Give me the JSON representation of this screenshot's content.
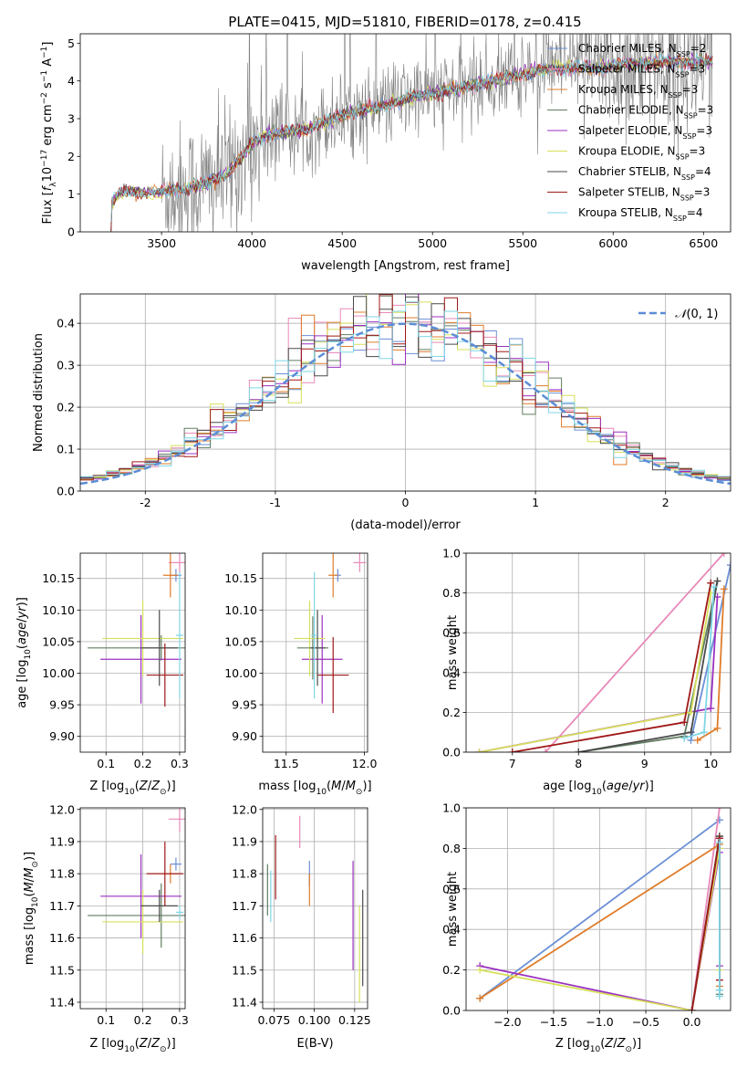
{
  "figure_title": "PLATE=0415, MJD=51810, FIBERID=0178, z=0.415",
  "colors": {
    "Chabrier MILES": "#6a8fd6",
    "Salpeter MILES": "#e889b8",
    "Kroupa MILES": "#e07c2a",
    "Chabrier ELODIE": "#607d60",
    "Salpeter ELODIE": "#9b30c0",
    "Kroupa ELODIE": "#d6e05a",
    "Chabrier STELIB": "#4a4a4a",
    "Salpeter STELIB": "#a01818",
    "Kroupa STELIB": "#7fd6e6",
    "data": "#808080",
    "gaussian": "#5b8dd6"
  },
  "chart_data": [
    {
      "id": "spectrum",
      "type": "line",
      "title": "PLATE=0415, MJD=51810, FIBERID=0178, z=0.415",
      "xlabel": "wavelength [Angstrom, rest frame]",
      "ylabel": "Flux [f_λ 10^-17 erg cm^-2 s^-1 A^-1]",
      "xlim": [
        3050,
        6650
      ],
      "ylim": [
        0,
        5.25
      ],
      "xticks": [
        3500,
        4000,
        4500,
        5000,
        5500,
        6000,
        6500
      ],
      "yticks": [
        0,
        1,
        2,
        3,
        4,
        5
      ],
      "grid": false,
      "legend_position": "top-right",
      "legend": [
        {
          "label": "Chabrier MILES, N",
          "sub": "SSP",
          "eq": "=2"
        },
        {
          "label": "Salpeter MILES, N",
          "sub": "SSP",
          "eq": "=3"
        },
        {
          "label": "Kroupa MILES, N",
          "sub": "SSP",
          "eq": "=3"
        },
        {
          "label": "Chabrier ELODIE, N",
          "sub": "SSP",
          "eq": "=3"
        },
        {
          "label": "Salpeter ELODIE, N",
          "sub": "SSP",
          "eq": "=3"
        },
        {
          "label": "Kroupa ELODIE, N",
          "sub": "SSP",
          "eq": "=3"
        },
        {
          "label": "Chabrier STELIB, N",
          "sub": "SSP",
          "eq": "=4"
        },
        {
          "label": "Salpeter STELIB, N",
          "sub": "SSP",
          "eq": "=3"
        },
        {
          "label": "Kroupa STELIB, N",
          "sub": "SSP",
          "eq": "=4"
        }
      ],
      "model_continuum": [
        [
          3220,
          0.0
        ],
        [
          3225,
          0.8
        ],
        [
          3270,
          1.05
        ],
        [
          3500,
          1.05
        ],
        [
          3700,
          1.2
        ],
        [
          3850,
          1.5
        ],
        [
          3950,
          2.0
        ],
        [
          4000,
          2.35
        ],
        [
          4100,
          2.6
        ],
        [
          4300,
          2.7
        ],
        [
          4500,
          3.1
        ],
        [
          4700,
          3.3
        ],
        [
          4900,
          3.6
        ],
        [
          5100,
          3.75
        ],
        [
          5300,
          3.95
        ],
        [
          5500,
          4.2
        ],
        [
          5700,
          4.35
        ],
        [
          5900,
          4.35
        ],
        [
          6100,
          4.45
        ],
        [
          6300,
          4.5
        ],
        [
          6550,
          4.5
        ]
      ],
      "data_range": [
        3500,
        6550
      ]
    },
    {
      "id": "residuals",
      "type": "histogram",
      "xlabel": "(data-model)/error",
      "ylabel": "Normed distribution",
      "xlim": [
        -2.5,
        2.5
      ],
      "ylim": [
        0,
        0.47
      ],
      "xticks": [
        -2,
        -1,
        0,
        1,
        2
      ],
      "yticks": [
        0.0,
        0.1,
        0.2,
        0.3,
        0.4
      ],
      "grid": true,
      "legend_position": "top-right",
      "legend_label": "N(0,1)",
      "bin_width": 0.1
    },
    {
      "id": "z-age",
      "type": "errorbar",
      "xlabel": "Z [log10(Z/Z⊙)]",
      "ylabel": "age  [log10(age/yr)]",
      "xlim": [
        0.03,
        0.315
      ],
      "ylim": [
        9.875,
        10.19
      ],
      "xticks": [
        0.1,
        0.2,
        0.3
      ],
      "yticks": [
        9.9,
        9.95,
        10.0,
        10.05,
        10.1,
        10.15
      ],
      "grid": true,
      "points": [
        {
          "model": "Chabrier MILES",
          "x": 0.29,
          "xerr": 0.015,
          "y": 10.155,
          "yerr": 0.01
        },
        {
          "model": "Salpeter MILES",
          "x": 0.3,
          "xerr": 0.03,
          "y": 10.175,
          "yerr": 0.015
        },
        {
          "model": "Kroupa MILES",
          "x": 0.275,
          "xerr": 0.02,
          "y": 10.155,
          "yerr": 0.035
        },
        {
          "model": "Chabrier ELODIE",
          "x": 0.25,
          "xerr": 0.2,
          "y": 10.04,
          "yerr": 0.02
        },
        {
          "model": "Salpeter ELODIE",
          "x": 0.195,
          "xerr": 0.11,
          "y": 10.022,
          "yerr": 0.07
        },
        {
          "model": "Kroupa ELODIE",
          "x": 0.2,
          "xerr": 0.11,
          "y": 10.055,
          "yerr": 0.06
        },
        {
          "model": "Chabrier STELIB",
          "x": 0.245,
          "xerr": 0.05,
          "y": 10.04,
          "yerr": 0.06
        },
        {
          "model": "Salpeter STELIB",
          "x": 0.26,
          "xerr": 0.05,
          "y": 9.997,
          "yerr": 0.05
        },
        {
          "model": "Kroupa STELIB",
          "x": 0.3,
          "xerr": 0.01,
          "y": 10.06,
          "yerr": 0.1
        }
      ]
    },
    {
      "id": "mass-age",
      "type": "errorbar",
      "xlabel": "mass [log10(M/M⊙)]",
      "ylabel": "",
      "xlim": [
        11.35,
        12.02
      ],
      "ylim": [
        9.875,
        10.19
      ],
      "xticks": [
        11.5,
        12.0
      ],
      "yticks": [
        9.9,
        9.95,
        10.0,
        10.05,
        10.1,
        10.15
      ],
      "grid": true,
      "points": [
        {
          "model": "Chabrier MILES",
          "x": 11.83,
          "xerr": 0.02,
          "y": 10.155,
          "yerr": 0.01
        },
        {
          "model": "Salpeter MILES",
          "x": 11.97,
          "xerr": 0.04,
          "y": 10.175,
          "yerr": 0.015
        },
        {
          "model": "Kroupa MILES",
          "x": 11.8,
          "xerr": 0.03,
          "y": 10.155,
          "yerr": 0.035
        },
        {
          "model": "Chabrier ELODIE",
          "x": 11.67,
          "xerr": 0.1,
          "y": 10.04,
          "yerr": 0.05
        },
        {
          "model": "Salpeter ELODIE",
          "x": 11.73,
          "xerr": 0.13,
          "y": 10.022,
          "yerr": 0.07
        },
        {
          "model": "Kroupa ELODIE",
          "x": 11.65,
          "xerr": 0.1,
          "y": 10.055,
          "yerr": 0.06
        },
        {
          "model": "Chabrier STELIB",
          "x": 11.7,
          "xerr": 0.05,
          "y": 10.04,
          "yerr": 0.06
        },
        {
          "model": "Salpeter STELIB",
          "x": 11.8,
          "xerr": 0.1,
          "y": 9.997,
          "yerr": 0.06
        },
        {
          "model": "Kroupa STELIB",
          "x": 11.68,
          "xerr": 0.02,
          "y": 10.06,
          "yerr": 0.1
        }
      ]
    },
    {
      "id": "age-weight",
      "type": "line",
      "xlabel": "age  [log10(age/yr)]",
      "ylabel": "mass weight",
      "xlim": [
        6.3,
        10.3
      ],
      "ylim": [
        0,
        1.0
      ],
      "xticks": [
        7,
        8,
        9,
        10
      ],
      "yticks": [
        0.0,
        0.2,
        0.4,
        0.6,
        0.8,
        1.0
      ],
      "grid": true,
      "series": [
        {
          "model": "Chabrier MILES",
          "x": [
            9.7,
            10.3
          ],
          "y": [
            0.06,
            0.94
          ]
        },
        {
          "model": "Salpeter MILES",
          "x": [
            7.5,
            10.2
          ],
          "y": [
            0.0,
            1.0
          ]
        },
        {
          "model": "Kroupa MILES",
          "x": [
            9.8,
            10.1,
            10.2
          ],
          "y": [
            0.06,
            0.12,
            0.82
          ]
        },
        {
          "model": "Chabrier ELODIE",
          "x": [
            8.0,
            9.6,
            10.1
          ],
          "y": [
            0.0,
            0.08,
            0.86
          ]
        },
        {
          "model": "Salpeter ELODIE",
          "x": [
            6.5,
            10.0,
            10.1
          ],
          "y": [
            0.0,
            0.22,
            0.78
          ]
        },
        {
          "model": "Kroupa ELODIE",
          "x": [
            6.5,
            9.7,
            10.0
          ],
          "y": [
            0.0,
            0.2,
            0.8
          ]
        },
        {
          "model": "Chabrier STELIB",
          "x": [
            8.0,
            9.7,
            10.1
          ],
          "y": [
            0.0,
            0.1,
            0.86
          ]
        },
        {
          "model": "Salpeter STELIB",
          "x": [
            7.0,
            9.6,
            10.0
          ],
          "y": [
            0.0,
            0.15,
            0.85
          ]
        },
        {
          "model": "Kroupa STELIB",
          "x": [
            9.6,
            9.9,
            10.05
          ],
          "y": [
            0.07,
            0.1,
            0.83
          ]
        }
      ]
    },
    {
      "id": "z-mass",
      "type": "errorbar",
      "xlabel": "Z [log10(Z/Z⊙)]",
      "ylabel": "mass [log10(M/M⊙)]",
      "xlim": [
        0.03,
        0.315
      ],
      "ylim": [
        11.38,
        12.005
      ],
      "xticks": [
        0.1,
        0.2,
        0.3
      ],
      "yticks": [
        11.4,
        11.5,
        11.6,
        11.7,
        11.8,
        11.9,
        12.0
      ],
      "grid": true,
      "points": [
        {
          "model": "Chabrier MILES",
          "x": 0.29,
          "xerr": 0.015,
          "y": 11.83,
          "yerr": 0.02
        },
        {
          "model": "Salpeter MILES",
          "x": 0.3,
          "xerr": 0.03,
          "y": 11.97,
          "yerr": 0.04
        },
        {
          "model": "Kroupa MILES",
          "x": 0.275,
          "xerr": 0.02,
          "y": 11.8,
          "yerr": 0.03
        },
        {
          "model": "Chabrier ELODIE",
          "x": 0.25,
          "xerr": 0.2,
          "y": 11.67,
          "yerr": 0.1
        },
        {
          "model": "Salpeter ELODIE",
          "x": 0.195,
          "xerr": 0.11,
          "y": 11.73,
          "yerr": 0.13
        },
        {
          "model": "Kroupa ELODIE",
          "x": 0.2,
          "xerr": 0.11,
          "y": 11.65,
          "yerr": 0.1
        },
        {
          "model": "Chabrier STELIB",
          "x": 0.245,
          "xerr": 0.05,
          "y": 11.7,
          "yerr": 0.05
        },
        {
          "model": "Salpeter STELIB",
          "x": 0.26,
          "xerr": 0.05,
          "y": 11.8,
          "yerr": 0.1
        },
        {
          "model": "Kroupa STELIB",
          "x": 0.3,
          "xerr": 0.01,
          "y": 11.68,
          "yerr": 0.02
        }
      ]
    },
    {
      "id": "ebv-mass",
      "type": "errorbar",
      "xlabel": "E(B-V)",
      "ylabel": "",
      "xlim": [
        0.068,
        0.133
      ],
      "ylim": [
        11.38,
        12.005
      ],
      "xticks": [
        0.075,
        0.1,
        0.125
      ],
      "yticks": [
        11.4,
        11.5,
        11.6,
        11.7,
        11.8,
        11.9,
        12.0
      ],
      "grid": true,
      "points": [
        {
          "model": "Chabrier MILES",
          "x": 0.097,
          "y": 11.8,
          "yerr": 0.04
        },
        {
          "model": "Salpeter MILES",
          "x": 0.091,
          "y": 11.93,
          "yerr": 0.05
        },
        {
          "model": "Kroupa MILES",
          "x": 0.097,
          "y": 11.75,
          "yerr": 0.05
        },
        {
          "model": "Chabrier ELODIE",
          "x": 0.071,
          "y": 11.75,
          "yerr": 0.08
        },
        {
          "model": "Salpeter ELODIE",
          "x": 0.124,
          "y": 11.67,
          "yerr": 0.17
        },
        {
          "model": "Kroupa ELODIE",
          "x": 0.128,
          "y": 11.55,
          "yerr": 0.15
        },
        {
          "model": "Chabrier STELIB",
          "x": 0.13,
          "y": 11.6,
          "yerr": 0.15
        },
        {
          "model": "Salpeter STELIB",
          "x": 0.076,
          "y": 11.82,
          "yerr": 0.1
        },
        {
          "model": "Kroupa STELIB",
          "x": 0.073,
          "y": 11.73,
          "yerr": 0.08
        }
      ]
    },
    {
      "id": "z-weight",
      "type": "line",
      "xlabel": "Z [log10(Z/Z⊙)]",
      "ylabel": "mass weight",
      "xlim": [
        -2.45,
        0.42
      ],
      "ylim": [
        0,
        1.0
      ],
      "xticks": [
        -2.0,
        -1.5,
        -1.0,
        -0.5,
        0.0
      ],
      "yticks": [
        0.0,
        0.2,
        0.4,
        0.6,
        0.8,
        1.0
      ],
      "grid": true,
      "series": [
        {
          "model": "Chabrier MILES",
          "x": [
            -2.3,
            0.3
          ],
          "y": [
            0.06,
            0.94
          ]
        },
        {
          "model": "Salpeter MILES",
          "x": [
            0.0,
            0.3
          ],
          "y": [
            0.0,
            1.0
          ]
        },
        {
          "model": "Kroupa MILES",
          "x": [
            -2.3,
            0.3,
            0.3
          ],
          "y": [
            0.06,
            0.82,
            0.12
          ]
        },
        {
          "model": "Chabrier ELODIE",
          "x": [
            0.0,
            0.3,
            0.3
          ],
          "y": [
            0.0,
            0.86,
            0.08
          ]
        },
        {
          "model": "Salpeter ELODIE",
          "x": [
            -2.3,
            0.0,
            0.3,
            0.3
          ],
          "y": [
            0.22,
            0.0,
            0.78,
            0.22
          ]
        },
        {
          "model": "Kroupa ELODIE",
          "x": [
            -2.3,
            0.0,
            0.3,
            0.3
          ],
          "y": [
            0.2,
            0.0,
            0.8,
            0.2
          ]
        },
        {
          "model": "Chabrier STELIB",
          "x": [
            0.0,
            0.3,
            0.3
          ],
          "y": [
            0.0,
            0.86,
            0.1
          ]
        },
        {
          "model": "Salpeter STELIB",
          "x": [
            0.0,
            0.3,
            0.3
          ],
          "y": [
            0.0,
            0.85,
            0.15
          ]
        },
        {
          "model": "Kroupa STELIB",
          "x": [
            0.3,
            0.3,
            0.3
          ],
          "y": [
            0.07,
            0.83,
            0.1
          ]
        }
      ]
    }
  ]
}
